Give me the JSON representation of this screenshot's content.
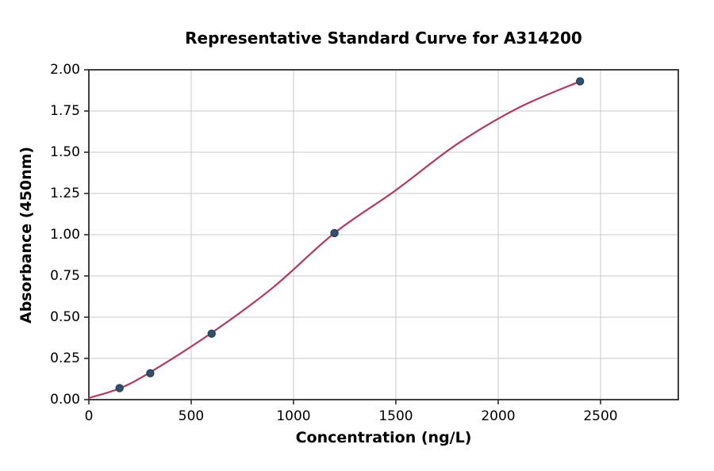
{
  "chart_data": {
    "type": "scatter",
    "title": "Representative Standard Curve for A314200",
    "xlabel": "Concentration (ng/L)",
    "ylabel": "Absorbance (450nm)",
    "xlim": [
      0,
      2880
    ],
    "ylim": [
      0,
      2.0
    ],
    "xticks": [
      0,
      500,
      1000,
      1500,
      2000,
      2500
    ],
    "xtick_labels": [
      "0",
      "500",
      "1000",
      "1500",
      "2000",
      "2500"
    ],
    "yticks": [
      0,
      0.25,
      0.5,
      0.75,
      1.0,
      1.25,
      1.5,
      1.75,
      2.0
    ],
    "ytick_labels": [
      "0.00",
      "0.25",
      "0.50",
      "0.75",
      "1.00",
      "1.25",
      "1.50",
      "1.75",
      "2.00"
    ],
    "grid": true,
    "legend": "none",
    "series": [
      {
        "name": "standard-points",
        "type": "scatter",
        "x": [
          150,
          300,
          600,
          1200,
          2400
        ],
        "y": [
          0.07,
          0.16,
          0.4,
          1.01,
          1.93
        ],
        "marker_color": "#33506b",
        "marker_edge_color": "#22405c"
      },
      {
        "name": "fit-curve",
        "type": "line",
        "x": [
          0,
          150,
          300,
          600,
          900,
          1200,
          1500,
          1800,
          2100,
          2400
        ],
        "y": [
          0.01,
          0.068,
          0.166,
          0.405,
          0.68,
          1.01,
          1.27,
          1.55,
          1.77,
          1.93
        ],
        "line_color": "#b03a62"
      }
    ],
    "colors": {
      "grid": "#c9c9c9",
      "spine": "#2b2b2b",
      "text": "#000000",
      "background": "#ffffff"
    }
  }
}
